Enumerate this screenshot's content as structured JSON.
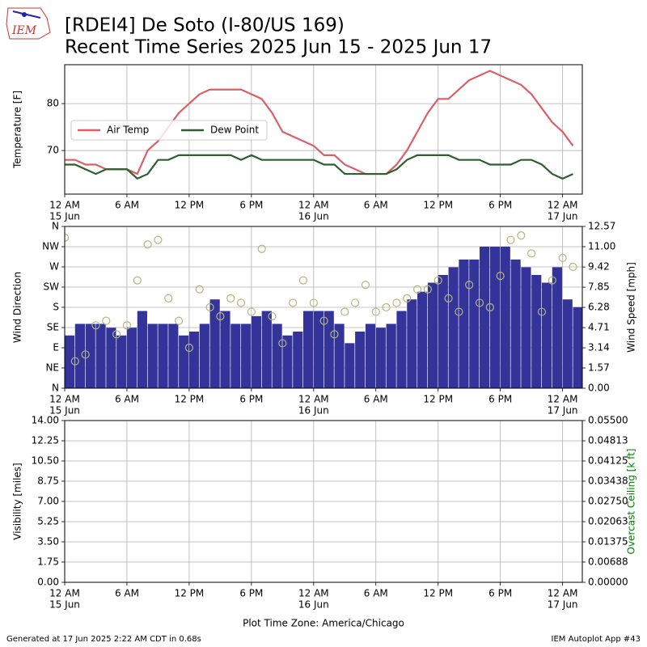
{
  "header": {
    "logo": "IEM",
    "title": "[RDEI4] De Soto (I-80/US 169)",
    "subtitle": "Recent Time Series 2025 Jun 15 - 2025 Jun 17"
  },
  "footer": {
    "generated": "Generated at 17 Jun 2025 2:22 AM CDT in 0.68s",
    "app": "IEM Autoplot App #43"
  },
  "chart_data": [
    {
      "type": "line",
      "ylabel": "Temperature [F]",
      "grid": true,
      "legend": "center left",
      "xlim": [
        0,
        49.9
      ],
      "ylim": [
        60.7,
        88.3
      ],
      "yticks": [
        70,
        80
      ],
      "xticks": [
        {
          "value": 0,
          "label": "12 AM",
          "date": "15 Jun"
        },
        {
          "value": 6,
          "label": "6 AM"
        },
        {
          "value": 12,
          "label": "12 PM"
        },
        {
          "value": 18,
          "label": "6 PM"
        },
        {
          "value": 24,
          "label": "12 AM",
          "date": "16 Jun"
        },
        {
          "value": 30,
          "label": "6 AM"
        },
        {
          "value": 36,
          "label": "12 PM"
        },
        {
          "value": 42,
          "label": "6 PM"
        },
        {
          "value": 48,
          "label": "12 AM",
          "date": "17 Jun"
        }
      ],
      "x": [
        0,
        1,
        2,
        3,
        4,
        5,
        6,
        7,
        8,
        9,
        10,
        11,
        12,
        13,
        14,
        15,
        16,
        17,
        18,
        19,
        20,
        21,
        22,
        23,
        24,
        25,
        26,
        27,
        28,
        29,
        30,
        31,
        32,
        33,
        34,
        35,
        36,
        37,
        38,
        39,
        40,
        41,
        42,
        43,
        44,
        45,
        46,
        47,
        48,
        49
      ],
      "series": [
        {
          "name": "Air Temp",
          "color": "#dc5f66",
          "values": [
            68,
            68,
            67,
            67,
            66,
            66,
            66,
            65,
            70,
            72,
            75,
            78,
            80,
            82,
            83,
            83,
            83,
            83,
            82,
            81,
            78,
            74,
            73,
            72,
            71,
            69,
            69,
            67,
            66,
            65,
            65,
            65,
            67,
            70,
            74,
            78,
            81,
            81,
            83,
            85,
            86,
            87,
            86,
            85,
            84,
            82,
            79,
            76,
            74,
            71
          ]
        },
        {
          "name": "Dew Point",
          "color": "#2e5f2e",
          "values": [
            67,
            67,
            66,
            65,
            66,
            66,
            66,
            64,
            65,
            68,
            68,
            69,
            69,
            69,
            69,
            69,
            69,
            68,
            69,
            68,
            68,
            68,
            68,
            68,
            68,
            67,
            67,
            65,
            65,
            65,
            65,
            65,
            66,
            68,
            69,
            69,
            69,
            69,
            68,
            68,
            68,
            67,
            67,
            67,
            68,
            68,
            67,
            65,
            64,
            65
          ]
        }
      ]
    },
    {
      "type": "combo",
      "ylabel": "Wind Direction",
      "y2label": "Wind Speed [mph]",
      "grid": true,
      "xlim": [
        0,
        49.9
      ],
      "ylim": [
        0,
        360
      ],
      "yticks": [
        {
          "value": 0,
          "label": "N"
        },
        {
          "value": 45,
          "label": "NE"
        },
        {
          "value": 90,
          "label": "E"
        },
        {
          "value": 135,
          "label": "SE"
        },
        {
          "value": 180,
          "label": "S"
        },
        {
          "value": 225,
          "label": "SW"
        },
        {
          "value": 270,
          "label": "W"
        },
        {
          "value": 315,
          "label": "NW"
        },
        {
          "value": 360,
          "label": "N"
        }
      ],
      "y2lim": [
        0,
        12.57
      ],
      "y2ticks": [
        {
          "value": 0,
          "label": "0.00"
        },
        1.57,
        3.14,
        4.71,
        6.28,
        7.85,
        9.42,
        {
          "value": 11,
          "label": "11.00"
        },
        12.57
      ],
      "xticks": [
        {
          "value": 0,
          "label": "12 AM",
          "date": "15 Jun"
        },
        {
          "value": 6,
          "label": "6 AM"
        },
        {
          "value": 12,
          "label": "12 PM"
        },
        {
          "value": 18,
          "label": "6 PM"
        },
        {
          "value": 24,
          "label": "12 AM",
          "date": "16 Jun"
        },
        {
          "value": 30,
          "label": "6 AM"
        },
        {
          "value": 36,
          "label": "12 PM"
        },
        {
          "value": 42,
          "label": "6 PM"
        },
        {
          "value": 48,
          "label": "12 AM",
          "date": "17 Jun"
        }
      ],
      "x": [
        0,
        1,
        2,
        3,
        4,
        5,
        6,
        7,
        8,
        9,
        10,
        11,
        12,
        13,
        14,
        15,
        16,
        17,
        18,
        19,
        20,
        21,
        22,
        23,
        24,
        25,
        26,
        27,
        28,
        29,
        30,
        31,
        32,
        33,
        34,
        35,
        36,
        37,
        38,
        39,
        40,
        41,
        42,
        43,
        44,
        45,
        46,
        47,
        48,
        49
      ],
      "series": [
        {
          "type": "bar",
          "axis": "y2",
          "color": "#333399",
          "values": [
            4.1,
            5.0,
            5.0,
            5.0,
            4.7,
            4.1,
            4.7,
            6.0,
            5.0,
            5.0,
            5.0,
            4.1,
            4.4,
            5.0,
            6.9,
            6.0,
            5.0,
            5.0,
            5.6,
            6.0,
            5.0,
            4.1,
            4.4,
            6.0,
            6.0,
            6.0,
            5.0,
            3.5,
            4.4,
            5.0,
            4.7,
            5.0,
            6.0,
            6.9,
            7.5,
            8.2,
            8.8,
            9.4,
            10.0,
            10.0,
            11.0,
            11.0,
            11.0,
            10.0,
            9.4,
            8.8,
            8.2,
            9.4,
            6.9,
            6.3
          ]
        },
        {
          "type": "scatter",
          "color": "#b3b77a",
          "values": [
            335,
            60,
            75,
            140,
            150,
            120,
            140,
            240,
            320,
            330,
            200,
            150,
            90,
            220,
            180,
            160,
            200,
            190,
            170,
            310,
            160,
            100,
            190,
            240,
            190,
            150,
            120,
            170,
            190,
            230,
            170,
            180,
            190,
            200,
            220,
            220,
            240,
            200,
            170,
            230,
            190,
            180,
            250,
            330,
            340,
            300,
            170,
            240,
            290,
            270
          ]
        }
      ]
    },
    {
      "type": "line",
      "ylabel": "Visibility [miles]",
      "y2label": "Overcast Ceiling [k ft]",
      "y2label_color": "#008000",
      "xlabel": "Plot Time Zone: America/Chicago",
      "grid": true,
      "xlim": [
        0,
        49.9
      ],
      "ylim": [
        0,
        14
      ],
      "yticks": [
        {
          "value": 0,
          "label": "0.00"
        },
        1.75,
        {
          "value": 3.5,
          "label": "3.50"
        },
        5.25,
        {
          "value": 7,
          "label": "7.00"
        },
        8.75,
        {
          "value": 10.5,
          "label": "10.50"
        },
        12.25,
        {
          "value": 14,
          "label": "14.00"
        }
      ],
      "y2lim": [
        0,
        0.055
      ],
      "y2ticks": [
        {
          "value": 0,
          "label": "0.00000"
        },
        {
          "value": 0.006875,
          "label": "0.00688"
        },
        {
          "value": 0.01375,
          "label": "0.01375"
        },
        {
          "value": 0.020625,
          "label": "0.02063"
        },
        {
          "value": 0.0275,
          "label": "0.02750"
        },
        {
          "value": 0.034375,
          "label": "0.03438"
        },
        {
          "value": 0.04125,
          "label": "0.04125"
        },
        {
          "value": 0.048125,
          "label": "0.04813"
        },
        {
          "value": 0.055,
          "label": "0.05500"
        }
      ],
      "xticks": [
        {
          "value": 0,
          "label": "12 AM",
          "date": "15 Jun"
        },
        {
          "value": 6,
          "label": "6 AM"
        },
        {
          "value": 12,
          "label": "12 PM"
        },
        {
          "value": 18,
          "label": "6 PM"
        },
        {
          "value": 24,
          "label": "12 AM",
          "date": "16 Jun"
        },
        {
          "value": 30,
          "label": "6 AM"
        },
        {
          "value": 36,
          "label": "12 PM"
        },
        {
          "value": 42,
          "label": "6 PM"
        },
        {
          "value": 48,
          "label": "12 AM",
          "date": "17 Jun"
        }
      ],
      "x": [],
      "series": []
    }
  ]
}
